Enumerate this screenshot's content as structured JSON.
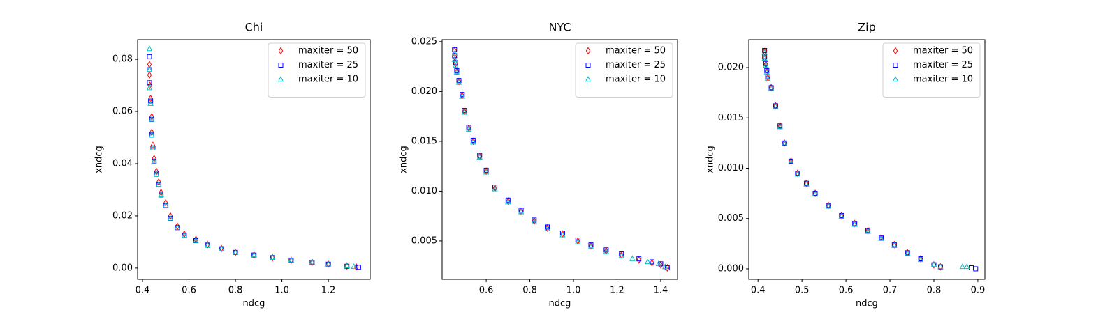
{
  "chart_data": [
    {
      "type": "scatter",
      "title": "Chi",
      "x_label": "ndcg",
      "y_label": "xndcg",
      "xlim": [
        0.379,
        1.38
      ],
      "ylim": [
        -0.0043,
        0.0875
      ],
      "xticks": [
        0.4,
        0.6,
        0.8,
        {
          "value": 1,
          "label": "1.0"
        },
        1.2
      ],
      "yticks": [
        {
          "value": 0,
          "label": "0.00"
        },
        0.02,
        0.04,
        0.06,
        0.08
      ],
      "legend": "upper right",
      "series": [
        {
          "name": "maxiter = 50",
          "color": "#ff0000",
          "marker": "diamond",
          "x": [
            0.43,
            0.43,
            0.432,
            0.435,
            0.44,
            0.44,
            0.445,
            0.45,
            0.46,
            0.47,
            0.48,
            0.5,
            0.52,
            0.55,
            0.58,
            0.63,
            0.68,
            0.74,
            0.8,
            0.88,
            0.96,
            1.04,
            1.13,
            1.2,
            1.28,
            1.32
          ],
          "values": [
            0.078,
            0.074,
            0.07,
            0.065,
            0.058,
            0.052,
            0.047,
            0.042,
            0.037,
            0.033,
            0.029,
            0.025,
            0.02,
            0.016,
            0.013,
            0.011,
            0.009,
            0.0075,
            0.006,
            0.005,
            0.004,
            0.003,
            0.0022,
            0.0015,
            0.0008,
            0.0004
          ]
        },
        {
          "name": "maxiter = 25",
          "color": "#0000ff",
          "marker": "square",
          "x": [
            0.43,
            0.43,
            0.43,
            0.435,
            0.44,
            0.44,
            0.445,
            0.45,
            0.46,
            0.47,
            0.48,
            0.5,
            0.52,
            0.55,
            0.58,
            0.63,
            0.68,
            0.74,
            0.8,
            0.88,
            0.96,
            1.04,
            1.13,
            1.2,
            1.28,
            1.33
          ],
          "values": [
            0.081,
            0.076,
            0.071,
            0.064,
            0.057,
            0.051,
            0.046,
            0.041,
            0.036,
            0.032,
            0.028,
            0.024,
            0.019,
            0.0155,
            0.0125,
            0.0105,
            0.0088,
            0.0074,
            0.006,
            0.005,
            0.004,
            0.003,
            0.0022,
            0.0015,
            0.0007,
            0.0003
          ]
        },
        {
          "name": "maxiter = 10",
          "color": "#00bfbf",
          "marker": "triangle",
          "x": [
            0.43,
            0.43,
            0.43,
            0.435,
            0.44,
            0.44,
            0.445,
            0.45,
            0.46,
            0.47,
            0.48,
            0.5,
            0.52,
            0.55,
            0.58,
            0.63,
            0.68,
            0.74,
            0.8,
            0.88,
            0.96,
            1.04,
            1.13,
            1.2,
            1.28,
            1.31
          ],
          "values": [
            0.084,
            0.076,
            0.069,
            0.063,
            0.057,
            0.051,
            0.046,
            0.041,
            0.036,
            0.032,
            0.028,
            0.024,
            0.019,
            0.0155,
            0.0125,
            0.0105,
            0.0088,
            0.0074,
            0.006,
            0.005,
            0.004,
            0.003,
            0.0022,
            0.0015,
            0.0008,
            0.0005
          ]
        }
      ]
    },
    {
      "type": "scatter",
      "title": "NYC",
      "x_label": "ndcg",
      "y_label": "xndcg",
      "xlim": [
        0.398,
        1.477
      ],
      "ylim": [
        0.00115,
        0.0252
      ],
      "xticks": [
        0.6,
        0.8,
        {
          "value": 1,
          "label": "1.0"
        },
        1.2,
        1.4
      ],
      "yticks": [
        0.005,
        {
          "value": 0.01,
          "label": "0.010"
        },
        0.015,
        {
          "value": 0.02,
          "label": "0.020"
        },
        0.025
      ],
      "legend": "upper right",
      "series": [
        {
          "name": "maxiter = 50",
          "color": "#ff0000",
          "marker": "diamond",
          "x": [
            0.455,
            0.455,
            0.46,
            0.465,
            0.475,
            0.49,
            0.5,
            0.52,
            0.54,
            0.57,
            0.6,
            0.64,
            0.7,
            0.76,
            0.82,
            0.88,
            0.95,
            1.02,
            1.08,
            1.15,
            1.22,
            1.3,
            1.36,
            1.4,
            1.43
          ],
          "values": [
            0.0241,
            0.0235,
            0.0228,
            0.022,
            0.021,
            0.0196,
            0.018,
            0.0163,
            0.015,
            0.0135,
            0.012,
            0.0103,
            0.009,
            0.008,
            0.007,
            0.0063,
            0.0057,
            0.005,
            0.0045,
            0.004,
            0.0036,
            0.0031,
            0.0028,
            0.0026,
            0.0023
          ]
        },
        {
          "name": "maxiter = 25",
          "color": "#0000ff",
          "marker": "square",
          "x": [
            0.455,
            0.455,
            0.46,
            0.465,
            0.475,
            0.49,
            0.5,
            0.52,
            0.54,
            0.57,
            0.6,
            0.64,
            0.7,
            0.76,
            0.82,
            0.88,
            0.95,
            1.02,
            1.08,
            1.15,
            1.22,
            1.3,
            1.36,
            1.4,
            1.43
          ],
          "values": [
            0.0242,
            0.0236,
            0.0229,
            0.0221,
            0.0211,
            0.0197,
            0.0181,
            0.0164,
            0.0151,
            0.0136,
            0.0121,
            0.0104,
            0.0091,
            0.0081,
            0.0071,
            0.0064,
            0.0058,
            0.0051,
            0.0046,
            0.0041,
            0.0037,
            0.0032,
            0.0029,
            0.0027,
            0.0023
          ]
        },
        {
          "name": "maxiter = 10",
          "color": "#00bfbf",
          "marker": "triangle",
          "x": [
            0.455,
            0.455,
            0.46,
            0.465,
            0.475,
            0.49,
            0.5,
            0.52,
            0.54,
            0.57,
            0.6,
            0.64,
            0.7,
            0.76,
            0.82,
            0.88,
            0.95,
            1.02,
            1.08,
            1.15,
            1.22,
            1.27,
            1.34,
            1.39,
            1.42
          ],
          "values": [
            0.0238,
            0.0232,
            0.0226,
            0.0219,
            0.0209,
            0.0195,
            0.0179,
            0.0162,
            0.0149,
            0.0134,
            0.0119,
            0.0102,
            0.0089,
            0.0079,
            0.0069,
            0.0062,
            0.0056,
            0.0049,
            0.0044,
            0.0039,
            0.0035,
            0.0032,
            0.0029,
            0.0027,
            0.0024
          ]
        }
      ]
    },
    {
      "type": "scatter",
      "title": "Zip",
      "x_label": "ndcg",
      "y_label": "xndcg",
      "xlim": [
        0.379,
        0.916
      ],
      "ylim": [
        -0.00104,
        0.02277
      ],
      "xticks": [
        0.4,
        0.5,
        0.6,
        0.7,
        0.8,
        0.9
      ],
      "yticks": [
        {
          "value": 0,
          "label": "0.000"
        },
        0.005,
        {
          "value": 0.01,
          "label": "0.010"
        },
        0.015,
        {
          "value": 0.02,
          "label": "0.020"
        }
      ],
      "legend": "upper right",
      "series": [
        {
          "name": "maxiter = 50",
          "color": "#ff0000",
          "marker": "diamond",
          "x": [
            0.415,
            0.415,
            0.418,
            0.42,
            0.422,
            0.43,
            0.44,
            0.45,
            0.46,
            0.475,
            0.49,
            0.51,
            0.53,
            0.56,
            0.59,
            0.62,
            0.65,
            0.68,
            0.71,
            0.74,
            0.77,
            0.8,
            0.815
          ],
          "values": [
            0.0216,
            0.021,
            0.0203,
            0.0196,
            0.019,
            0.018,
            0.0162,
            0.0142,
            0.0125,
            0.0107,
            0.0095,
            0.0085,
            0.0075,
            0.0063,
            0.0053,
            0.0045,
            0.0038,
            0.0031,
            0.0024,
            0.0016,
            0.001,
            0.0004,
            0.0002
          ]
        },
        {
          "name": "maxiter = 25",
          "color": "#0000ff",
          "marker": "square",
          "x": [
            0.415,
            0.415,
            0.418,
            0.42,
            0.422,
            0.43,
            0.44,
            0.45,
            0.46,
            0.475,
            0.49,
            0.51,
            0.53,
            0.56,
            0.59,
            0.62,
            0.65,
            0.68,
            0.71,
            0.74,
            0.77,
            0.8,
            0.815,
            0.885,
            0.895
          ],
          "values": [
            0.0217,
            0.0211,
            0.0204,
            0.0197,
            0.0191,
            0.018,
            0.0162,
            0.0142,
            0.0125,
            0.0107,
            0.0095,
            0.0085,
            0.0075,
            0.0063,
            0.0053,
            0.0045,
            0.0038,
            0.0031,
            0.0024,
            0.0016,
            0.001,
            0.0004,
            0.0002,
            0.0001,
            0
          ]
        },
        {
          "name": "maxiter = 10",
          "color": "#00bfbf",
          "marker": "triangle",
          "x": [
            0.415,
            0.415,
            0.418,
            0.42,
            0.422,
            0.43,
            0.44,
            0.45,
            0.46,
            0.475,
            0.49,
            0.51,
            0.53,
            0.56,
            0.59,
            0.62,
            0.65,
            0.68,
            0.71,
            0.74,
            0.77,
            0.8,
            0.815,
            0.865,
            0.875
          ],
          "values": [
            0.0215,
            0.0209,
            0.0202,
            0.0195,
            0.0189,
            0.0179,
            0.0161,
            0.0141,
            0.0124,
            0.0106,
            0.0094,
            0.0084,
            0.0074,
            0.0062,
            0.0052,
            0.0044,
            0.0037,
            0.003,
            0.0023,
            0.0015,
            0.0009,
            0.0004,
            0.0002,
            0.0002,
            0.0002
          ]
        }
      ]
    }
  ]
}
